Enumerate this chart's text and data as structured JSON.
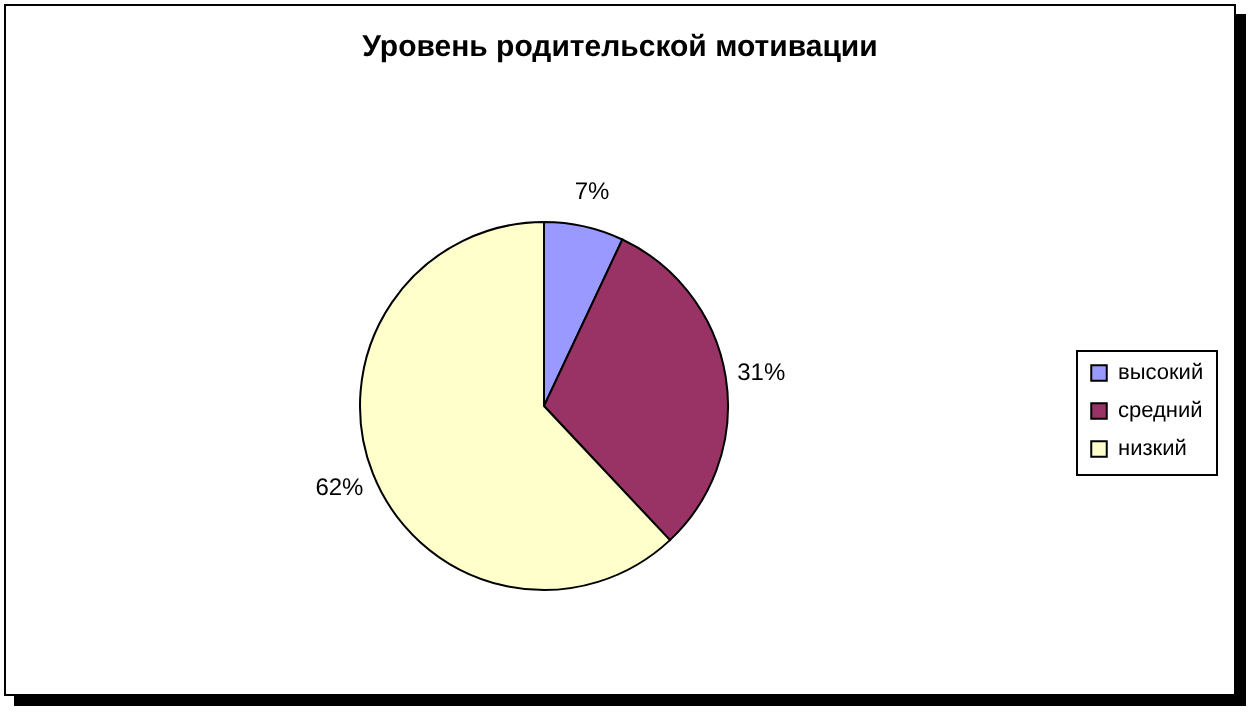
{
  "chart_data": {
    "type": "pie",
    "title": "Уровень родительской мотивации",
    "categories": [
      "высокий",
      "средний",
      "низкий"
    ],
    "values": [
      7,
      31,
      62
    ],
    "colors": [
      "#9999ff",
      "#993366",
      "#ffffcc"
    ],
    "value_labels": [
      "7%",
      "31%",
      "62%"
    ],
    "legend": "right"
  }
}
